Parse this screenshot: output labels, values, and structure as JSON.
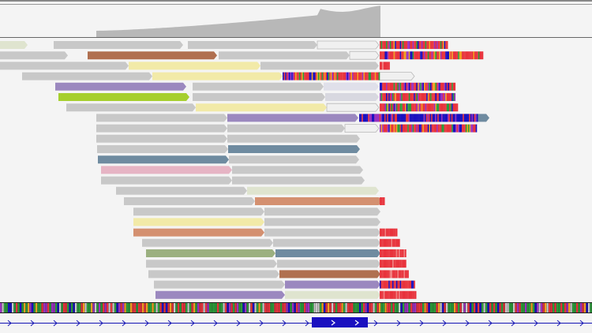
{
  "view": {
    "type": "genome-alignment-viewer",
    "rows": [
      {
        "segments": [
          {
            "color": "#dfe4cf"
          },
          {
            "color": "#c8c8c8"
          },
          {
            "color": "#c8c8c8"
          },
          {
            "color": "#f0f0f0"
          }
        ],
        "mismatch": "dense"
      },
      {
        "segments": [
          {
            "color": "#c8c8c8"
          },
          {
            "color": "#b07050"
          },
          {
            "color": "#c8c8c8"
          },
          {
            "color": "#f0f0f0"
          }
        ],
        "mismatch": "dense"
      },
      {
        "segments": [
          {
            "color": "#c8c8c8"
          },
          {
            "color": "#f2eaa8"
          },
          {
            "color": "#c8c8c8"
          }
        ],
        "mismatch": "short"
      },
      {
        "segments": [
          {
            "color": "#c8c8c8"
          },
          {
            "color": "#f2eaa8"
          },
          {
            "color": "#f0f0f0"
          }
        ],
        "mismatch": "none"
      },
      {
        "segments": [
          {
            "color": "#9b88bf"
          },
          {
            "color": "#c8c8c8"
          },
          {
            "color": "#e0e0ea"
          }
        ],
        "mismatch": "dense"
      },
      {
        "segments": [
          {
            "color": "#a6cf2e"
          },
          {
            "color": "#c8c8c8"
          },
          {
            "color": "#d8d8e0"
          }
        ],
        "mismatch": "dense"
      },
      {
        "segments": [
          {
            "color": "#c8c8c8"
          },
          {
            "color": "#f2eaa8"
          },
          {
            "color": "#f0f0f0"
          }
        ],
        "mismatch": "dense"
      },
      {
        "segments": [
          {
            "color": "#c8c8c8"
          },
          {
            "color": "#9b88bf"
          },
          {
            "color": "#6f8ba0"
          }
        ],
        "mismatch": "blue"
      },
      {
        "segments": [
          {
            "color": "#c8c8c8"
          },
          {
            "color": "#c8c8c8"
          },
          {
            "color": "#f0f0f0"
          }
        ],
        "mismatch": "dense"
      },
      {
        "segments": [
          {
            "color": "#c8c8c8"
          },
          {
            "color": "#c8c8c8"
          }
        ],
        "mismatch": "none"
      },
      {
        "segments": [
          {
            "color": "#c8c8c8"
          },
          {
            "color": "#6f8ba0"
          }
        ],
        "mismatch": "none"
      },
      {
        "segments": [
          {
            "color": "#6f8ba0"
          },
          {
            "color": "#c8c8c8"
          }
        ],
        "mismatch": "none"
      },
      {
        "segments": [
          {
            "color": "#e6b4c4"
          },
          {
            "color": "#c8c8c8"
          }
        ],
        "mismatch": "none"
      },
      {
        "segments": [
          {
            "color": "#c8c8c8"
          },
          {
            "color": "#c8c8c8"
          }
        ],
        "mismatch": "none"
      },
      {
        "segments": [
          {
            "color": "#c8c8c8"
          },
          {
            "color": "#dfe4cf"
          }
        ],
        "mismatch": "none"
      },
      {
        "segments": [
          {
            "color": "#c8c8c8"
          },
          {
            "color": "#d49070"
          }
        ],
        "mismatch": "red-small"
      },
      {
        "segments": [
          {
            "color": "#c8c8c8"
          },
          {
            "color": "#c8c8c8"
          }
        ],
        "mismatch": "none"
      },
      {
        "segments": [
          {
            "color": "#f2eaa8"
          },
          {
            "color": "#c8c8c8"
          }
        ],
        "mismatch": "none"
      },
      {
        "segments": [
          {
            "color": "#d49070"
          },
          {
            "color": "#c8c8c8"
          }
        ],
        "mismatch": "red"
      },
      {
        "segments": [
          {
            "color": "#c8c8c8"
          },
          {
            "color": "#c8c8c8"
          }
        ],
        "mismatch": "red"
      },
      {
        "segments": [
          {
            "color": "#9bb080"
          },
          {
            "color": "#6f8ba0"
          }
        ],
        "mismatch": "red"
      },
      {
        "segments": [
          {
            "color": "#c8c8c8"
          },
          {
            "color": "#c8c8c8"
          }
        ],
        "mismatch": "red"
      },
      {
        "segments": [
          {
            "color": "#c8c8c8"
          },
          {
            "color": "#b07050"
          }
        ],
        "mismatch": "red"
      },
      {
        "segments": [
          {
            "color": "#c8c8c8"
          },
          {
            "color": "#9b88bf"
          }
        ],
        "mismatch": "red-blue"
      },
      {
        "segments": [
          {
            "color": "#9b88bf"
          },
          {
            "color": "#dfe4cf"
          }
        ],
        "mismatch": "red"
      }
    ],
    "colors": {
      "background": "#f4f4f4",
      "coverage": "#b8b8b8",
      "read_default": "#c8c8c8",
      "mismatch_red": "#e8333c",
      "gene_track": "#1414b4",
      "gene_exon": "#1a10c0"
    },
    "gene_track": {
      "strand": "+",
      "exon_arrows": ">  >"
    }
  }
}
